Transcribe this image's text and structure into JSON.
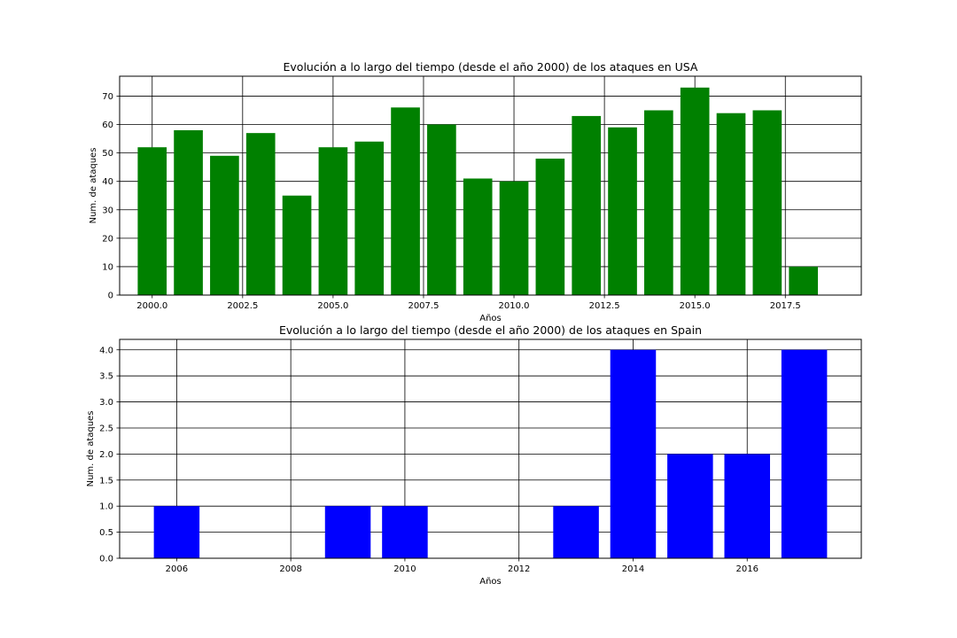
{
  "chart_data": [
    {
      "type": "bar",
      "title": "Evolución a lo largo del tiempo (desde el año 2000) de los ataques en USA",
      "xlabel": "Años",
      "ylabel": "Num. de ataques",
      "color": "#008000",
      "grid": true,
      "xlim": [
        1999.1,
        2019.6
      ],
      "ylim": [
        0,
        77
      ],
      "xticks": [
        2000.0,
        2002.5,
        2005.0,
        2007.5,
        2010.0,
        2012.5,
        2015.0,
        2017.5
      ],
      "xtick_labels": [
        "2000.0",
        "2002.5",
        "2005.0",
        "2007.5",
        "2010.0",
        "2012.5",
        "2015.0",
        "2017.5"
      ],
      "yticks": [
        0,
        10,
        20,
        30,
        40,
        50,
        60,
        70
      ],
      "ytick_labels": [
        "0",
        "10",
        "20",
        "30",
        "40",
        "50",
        "60",
        "70"
      ],
      "x": [
        2000,
        2001,
        2002,
        2003,
        2004,
        2005,
        2006,
        2007,
        2008,
        2009,
        2010,
        2011,
        2012,
        2013,
        2014,
        2015,
        2016,
        2017,
        2018
      ],
      "values": [
        52,
        58,
        49,
        57,
        35,
        52,
        54,
        66,
        60,
        41,
        40,
        48,
        63,
        59,
        65,
        73,
        64,
        65,
        10
      ]
    },
    {
      "type": "bar",
      "title": "Evolución a lo largo del tiempo (desde el año 2000) de los ataques en Spain",
      "xlabel": "Años",
      "ylabel": "Num. de ataques",
      "color": "#0000ff",
      "grid": true,
      "xlim": [
        2005.0,
        2018.0
      ],
      "ylim": [
        0,
        4.2
      ],
      "xticks": [
        2006,
        2008,
        2010,
        2012,
        2014,
        2016
      ],
      "xtick_labels": [
        "2006",
        "2008",
        "2010",
        "2012",
        "2014",
        "2016"
      ],
      "yticks": [
        0,
        0.5,
        1.0,
        1.5,
        2.0,
        2.5,
        3.0,
        3.5,
        4.0
      ],
      "ytick_labels": [
        "0.0",
        "0.5",
        "1.0",
        "1.5",
        "2.0",
        "2.5",
        "3.0",
        "3.5",
        "4.0"
      ],
      "x": [
        2006,
        2009,
        2010,
        2013,
        2014,
        2015,
        2016,
        2017
      ],
      "values": [
        1,
        1,
        1,
        1,
        4,
        2,
        2,
        4
      ]
    }
  ]
}
